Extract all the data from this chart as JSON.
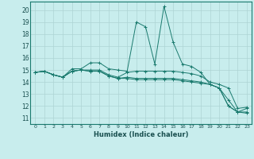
{
  "xlabel": "Humidex (Indice chaleur)",
  "background_color": "#c8eded",
  "grid_color": "#add4d4",
  "line_color": "#1a7a6e",
  "xlim": [
    -0.5,
    23.5
  ],
  "ylim": [
    10.5,
    20.7
  ],
  "yticks": [
    11,
    12,
    13,
    14,
    15,
    16,
    17,
    18,
    19,
    20
  ],
  "xticks": [
    0,
    1,
    2,
    3,
    4,
    5,
    6,
    7,
    8,
    9,
    10,
    11,
    12,
    13,
    14,
    15,
    16,
    17,
    18,
    19,
    20,
    21,
    22,
    23
  ],
  "series": [
    [
      14.8,
      14.9,
      14.6,
      14.4,
      15.1,
      15.1,
      15.6,
      15.6,
      15.1,
      15.0,
      14.9,
      19.0,
      18.6,
      15.5,
      20.3,
      17.3,
      15.5,
      15.3,
      14.8,
      13.8,
      13.5,
      12.0,
      11.5,
      11.4
    ],
    [
      14.8,
      14.9,
      14.6,
      14.4,
      14.9,
      15.0,
      15.0,
      15.0,
      14.6,
      14.4,
      14.8,
      14.9,
      14.9,
      14.9,
      14.9,
      14.9,
      14.8,
      14.7,
      14.5,
      14.0,
      13.8,
      13.5,
      11.8,
      11.9
    ],
    [
      14.8,
      14.9,
      14.6,
      14.4,
      14.9,
      15.0,
      14.9,
      14.9,
      14.5,
      14.3,
      14.4,
      14.3,
      14.3,
      14.3,
      14.3,
      14.3,
      14.2,
      14.1,
      14.0,
      13.8,
      13.5,
      12.5,
      11.5,
      11.5
    ],
    [
      14.8,
      14.9,
      14.6,
      14.4,
      14.9,
      15.0,
      14.9,
      14.9,
      14.5,
      14.3,
      14.3,
      14.2,
      14.2,
      14.2,
      14.2,
      14.2,
      14.1,
      14.0,
      13.9,
      13.8,
      13.5,
      12.0,
      11.5,
      11.8
    ]
  ]
}
